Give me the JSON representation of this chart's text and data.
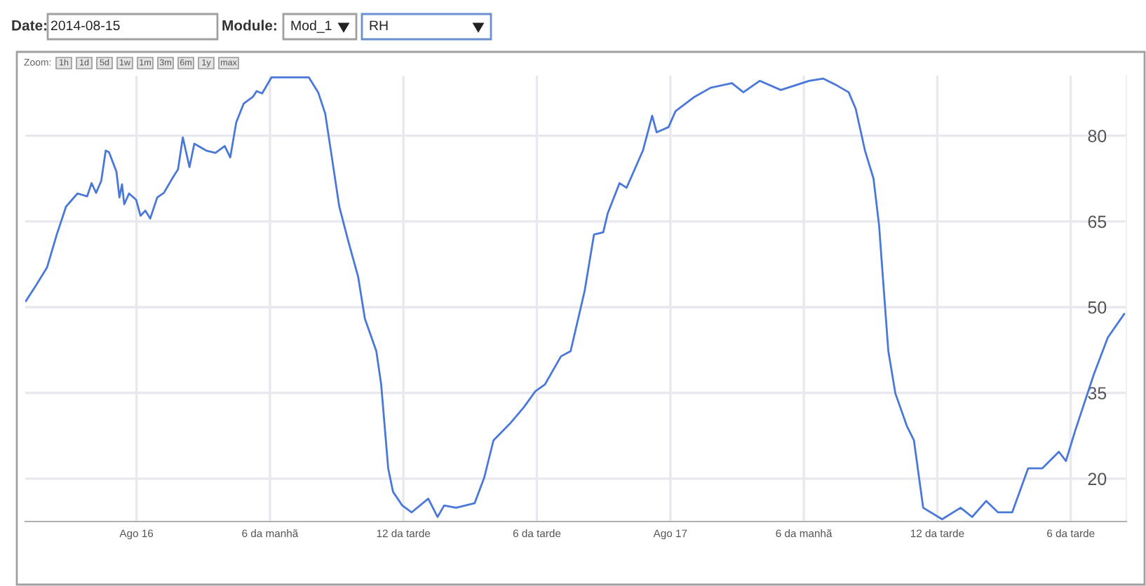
{
  "chart_data": {
    "type": "line",
    "annotations": [
      "Date:",
      "2014-08-15",
      "Module:",
      "Mod_1",
      "RH",
      "Zoom:",
      "1h",
      "1d",
      "5d",
      "1w",
      "1m",
      "3m",
      "6m",
      "1y",
      "max"
    ],
    "series": [
      {
        "color": "#4a78d8",
        "x": [
          "2014-08-15T19:02",
          "2014-08-15T19:28",
          "2014-08-15T19:59",
          "2014-08-15T20:25",
          "2014-08-15T20:50",
          "2014-08-15T21:21",
          "2014-08-15T21:47",
          "2014-08-15T21:59",
          "2014-08-15T22:11",
          "2014-08-15T22:25",
          "2014-08-15T22:37",
          "2014-08-15T22:46",
          "2014-08-15T23:06",
          "2014-08-15T23:14",
          "2014-08-15T23:21",
          "2014-08-15T23:27",
          "2014-08-15T23:40",
          "2014-08-15T23:59",
          "2014-08-16T00:11",
          "2014-08-16T00:24",
          "2014-08-16T00:37",
          "2014-08-16T00:56",
          "2014-08-16T01:14",
          "2014-08-16T01:40",
          "2014-08-16T01:52",
          "2014-08-16T02:05",
          "2014-08-16T02:23",
          "2014-08-16T02:36",
          "2014-08-16T03:08",
          "2014-08-16T03:33",
          "2014-08-16T03:58",
          "2014-08-16T04:13",
          "2014-08-16T04:29",
          "2014-08-16T04:49",
          "2014-08-16T05:14",
          "2014-08-16T05:24",
          "2014-08-16T05:39",
          "2014-08-16T06:04",
          "2014-08-16T07:45",
          "2014-08-16T08:10",
          "2014-08-16T08:29",
          "2014-08-16T08:48",
          "2014-08-16T09:07",
          "2014-08-16T09:32",
          "2014-08-16T09:58",
          "2014-08-16T10:16",
          "2014-08-16T10:47",
          "2014-08-16T11:00",
          "2014-08-16T11:19",
          "2014-08-16T11:32",
          "2014-08-16T11:57",
          "2014-08-16T12:22",
          "2014-08-16T13:07",
          "2014-08-16T13:32",
          "2014-08-16T13:50",
          "2014-08-16T14:22",
          "2014-08-16T15:12",
          "2014-08-16T15:38",
          "2014-08-16T16:03",
          "2014-08-16T16:47",
          "2014-08-16T17:25",
          "2014-08-16T17:56",
          "2014-08-16T18:22",
          "2014-08-16T19:05",
          "2014-08-16T19:31",
          "2014-08-16T20:09",
          "2014-08-16T20:34",
          "2014-08-16T20:59",
          "2014-08-16T21:11",
          "2014-08-16T21:43",
          "2014-08-16T22:02",
          "2014-08-16T22:46",
          "2014-08-16T23:11",
          "2014-08-16T23:23",
          "2014-08-16T23:55",
          "2014-08-17T00:14",
          "2014-08-17T01:05",
          "2014-08-17T01:49",
          "2014-08-17T02:46",
          "2014-08-17T03:17",
          "2014-08-17T04:01",
          "2014-08-17T04:58",
          "2014-08-17T06:14",
          "2014-08-17T06:52",
          "2014-08-17T07:29",
          "2014-08-17T08:01",
          "2014-08-17T08:20",
          "2014-08-17T08:45",
          "2014-08-17T09:08",
          "2014-08-17T09:23",
          "2014-08-17T09:35",
          "2014-08-17T09:48",
          "2014-08-17T10:07",
          "2014-08-17T10:38",
          "2014-08-17T10:57",
          "2014-08-17T11:22",
          "2014-08-17T12:13",
          "2014-08-17T13:03",
          "2014-08-17T13:34",
          "2014-08-17T14:12",
          "2014-08-17T14:44",
          "2014-08-17T15:22",
          "2014-08-17T16:05",
          "2014-08-17T16:43",
          "2014-08-17T17:28",
          "2014-08-17T17:47",
          "2014-08-17T18:12",
          "2014-08-17T19:02",
          "2014-08-17T19:40",
          "2014-08-17T20:24"
        ],
        "values": [
          51.1,
          53.7,
          57.0,
          62.7,
          67.6,
          69.9,
          69.4,
          71.7,
          70.0,
          72.1,
          77.4,
          77.1,
          73.7,
          69.2,
          71.5,
          68.0,
          69.9,
          68.8,
          66.0,
          66.9,
          65.5,
          69.2,
          70.0,
          72.9,
          74.1,
          79.7,
          74.5,
          78.6,
          77.4,
          77.0,
          78.2,
          76.2,
          82.3,
          85.6,
          86.8,
          87.8,
          87.4,
          90.2,
          90.2,
          87.6,
          83.9,
          75.8,
          67.6,
          61.4,
          55.3,
          48.0,
          42.3,
          36.5,
          21.8,
          17.7,
          15.3,
          14.1,
          16.5,
          13.3,
          15.3,
          14.9,
          15.7,
          20.2,
          26.7,
          29.6,
          32.5,
          35.3,
          36.5,
          41.4,
          42.3,
          52.9,
          62.7,
          63.1,
          66.4,
          71.7,
          70.9,
          77.4,
          83.5,
          80.6,
          81.5,
          84.3,
          86.8,
          88.4,
          89.2,
          87.6,
          89.6,
          88.0,
          89.6,
          90.0,
          88.8,
          87.6,
          84.7,
          77.4,
          72.5,
          64.3,
          53.7,
          42.3,
          34.9,
          29.2,
          26.7,
          14.9,
          12.9,
          14.9,
          13.3,
          16.1,
          14.1,
          14.1,
          21.8,
          21.8,
          24.7,
          23.1,
          28.4,
          38.2,
          44.7,
          48.8
        ]
      }
    ],
    "xlim": [
      "2014-08-15T19:00",
      "2014-08-17T20:30"
    ],
    "xticks": [
      {
        "value": "2014-08-16T00:00",
        "label": "Ago 16"
      },
      {
        "value": "2014-08-16T06:00",
        "label": "6 da manhã"
      },
      {
        "value": "2014-08-16T12:00",
        "label": "12 da tarde"
      },
      {
        "value": "2014-08-16T18:00",
        "label": "6 da tarde"
      },
      {
        "value": "2014-08-17T00:00",
        "label": "Ago 17"
      },
      {
        "value": "2014-08-17T06:00",
        "label": "6 da manhã"
      },
      {
        "value": "2014-08-17T12:00",
        "label": "12 da tarde"
      },
      {
        "value": "2014-08-17T18:00",
        "label": "6 da tarde"
      }
    ],
    "ylim": [
      12.5,
      90.5
    ],
    "yticks": [
      20,
      35,
      50,
      65,
      80
    ],
    "grid": true,
    "line_style": "solid"
  }
}
